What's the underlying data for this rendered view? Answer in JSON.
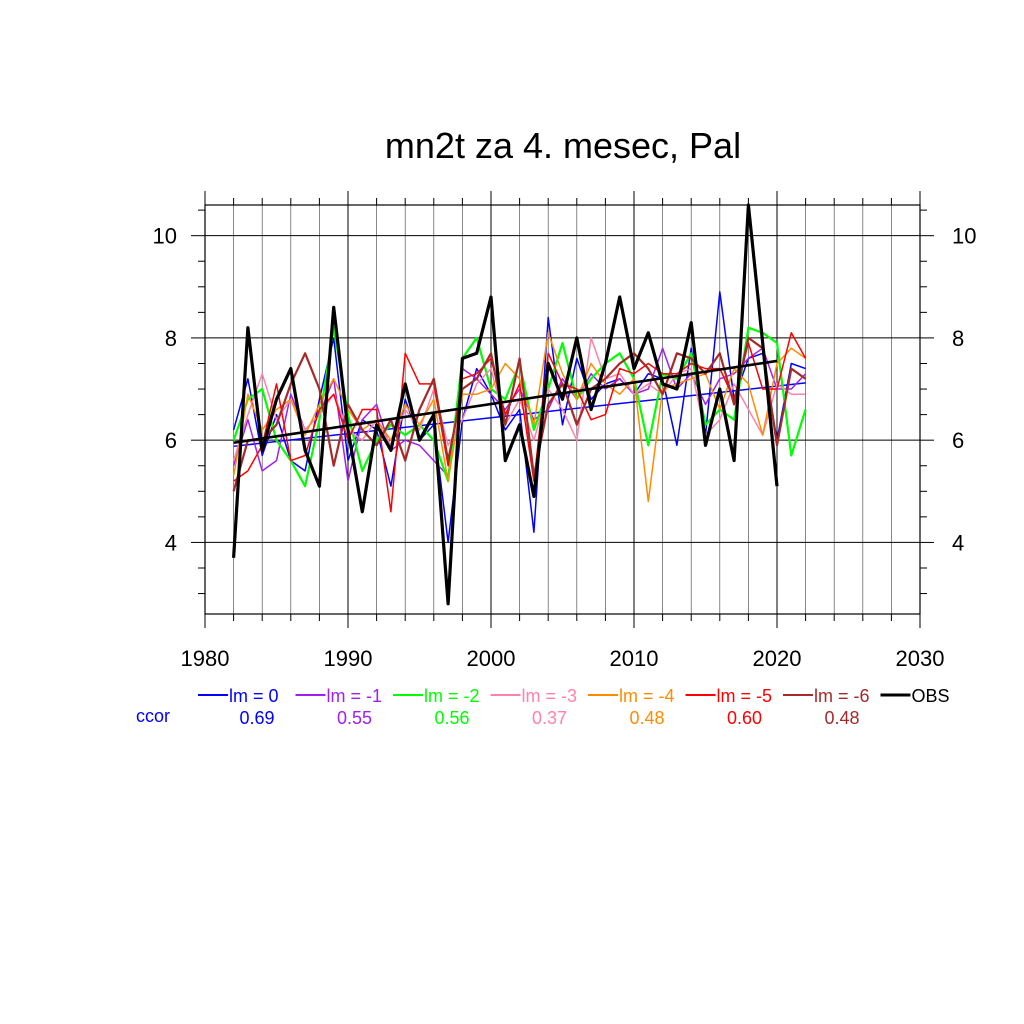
{
  "chart_data": {
    "type": "line",
    "title": "mn2t za 4. mesec, Pal",
    "xlabel": "",
    "ylabel": "",
    "xlim": [
      1980,
      2030
    ],
    "ylim": [
      2.6,
      10.6
    ],
    "x_ticks": [
      1980,
      1990,
      2000,
      2010,
      2020,
      2030
    ],
    "y_ticks": [
      4,
      6,
      8,
      10
    ],
    "grid": true,
    "ccor_label": "ccor",
    "series": [
      {
        "name": "lm = 0",
        "color": "#0000ff",
        "ccor": "0.69",
        "width": 1.5,
        "x": [
          1982,
          1983,
          1984,
          1985,
          1986,
          1987,
          1988,
          1989,
          1990,
          1991,
          1992,
          1993,
          1994,
          1995,
          1996,
          1997,
          1998,
          1999,
          2000,
          2001,
          2002,
          2003,
          2004,
          2005,
          2006,
          2007,
          2008,
          2009,
          2010,
          2011,
          2012,
          2013,
          2014,
          2015,
          2016,
          2017,
          2018,
          2019,
          2020,
          2021,
          2022
        ],
        "y": [
          6.2,
          7.2,
          5.7,
          6.5,
          5.6,
          5.4,
          6.8,
          8.0,
          5.6,
          6.4,
          6.2,
          5.1,
          6.8,
          6.0,
          6.3,
          4.0,
          6.4,
          7.4,
          6.9,
          6.2,
          6.6,
          4.2,
          8.4,
          6.3,
          7.6,
          6.8,
          7.1,
          7.2,
          6.9,
          7.3,
          7.2,
          5.9,
          7.8,
          6.1,
          8.9,
          6.8,
          7.6,
          7.7,
          6.0,
          7.5,
          7.4
        ],
        "trend": {
          "x": [
            1982,
            2022
          ],
          "y": [
            5.88,
            7.12
          ]
        }
      },
      {
        "name": "lm = -1",
        "color": "#a020f0",
        "ccor": "0.55",
        "width": 1.5,
        "x": [
          1982,
          1983,
          1984,
          1985,
          1986,
          1987,
          1988,
          1989,
          1990,
          1991,
          1992,
          1993,
          1994,
          1995,
          1996,
          1997,
          1998,
          1999,
          2000,
          2001,
          2002,
          2003,
          2004,
          2005,
          2006,
          2007,
          2008,
          2009,
          2010,
          2011,
          2012,
          2013,
          2014,
          2015,
          2016,
          2017,
          2018,
          2019,
          2020,
          2021,
          2022
        ],
        "y": [
          5.5,
          6.4,
          5.4,
          5.6,
          6.9,
          6.2,
          6.5,
          7.2,
          5.2,
          6.4,
          6.7,
          5.8,
          6.0,
          5.9,
          5.6,
          5.3,
          7.4,
          7.2,
          6.9,
          6.6,
          7.0,
          6.4,
          6.6,
          7.2,
          6.8,
          7.3,
          7.0,
          7.2,
          6.9,
          7.0,
          7.8,
          7.0,
          7.3,
          6.7,
          7.2,
          7.3,
          7.6,
          7.8,
          7.0,
          7.0,
          7.3
        ]
      },
      {
        "name": "lm = -2",
        "color": "#00ff00",
        "ccor": "0.56",
        "width": 2.2,
        "x": [
          1982,
          1983,
          1984,
          1985,
          1986,
          1987,
          1988,
          1989,
          1990,
          1991,
          1992,
          1993,
          1994,
          1995,
          1996,
          1997,
          1998,
          1999,
          2000,
          2001,
          2002,
          2003,
          2004,
          2005,
          2006,
          2007,
          2008,
          2009,
          2010,
          2011,
          2012,
          2013,
          2014,
          2015,
          2016,
          2017,
          2018,
          2019,
          2020,
          2021,
          2022
        ],
        "y": [
          6.0,
          6.8,
          7.0,
          6.0,
          5.6,
          5.1,
          6.4,
          8.2,
          6.5,
          5.4,
          6.0,
          6.3,
          6.1,
          6.3,
          6.0,
          5.2,
          7.6,
          8.0,
          7.0,
          6.8,
          7.5,
          6.2,
          7.0,
          7.9,
          6.8,
          7.2,
          7.5,
          7.7,
          7.2,
          5.9,
          7.3,
          7.2,
          7.7,
          6.3,
          6.6,
          6.4,
          8.2,
          8.1,
          7.9,
          5.7,
          6.6
        ]
      },
      {
        "name": "lm = -3",
        "color": "#ff82ab",
        "ccor": "0.37",
        "width": 1.5,
        "x": [
          1982,
          1983,
          1984,
          1985,
          1986,
          1987,
          1988,
          1989,
          1990,
          1991,
          1992,
          1993,
          1994,
          1995,
          1996,
          1997,
          1998,
          1999,
          2000,
          2001,
          2002,
          2003,
          2004,
          2005,
          2006,
          2007,
          2008,
          2009,
          2010,
          2011,
          2012,
          2013,
          2014,
          2015,
          2016,
          2017,
          2018,
          2019,
          2020,
          2021,
          2022
        ],
        "y": [
          5.6,
          6.5,
          7.3,
          6.4,
          6.8,
          6.2,
          6.5,
          6.9,
          6.2,
          6.0,
          6.4,
          5.9,
          6.6,
          6.2,
          7.0,
          5.9,
          6.4,
          7.1,
          7.4,
          6.3,
          6.8,
          6.0,
          7.0,
          6.6,
          6.0,
          8.0,
          7.2,
          7.3,
          6.9,
          7.1,
          6.9,
          7.3,
          7.4,
          6.1,
          6.4,
          7.1,
          6.6,
          6.1,
          7.1,
          6.9,
          6.9
        ]
      },
      {
        "name": "lm = -4",
        "color": "#ff8c00",
        "ccor": "0.48",
        "width": 1.5,
        "x": [
          1982,
          1983,
          1984,
          1985,
          1986,
          1987,
          1988,
          1989,
          1990,
          1991,
          1992,
          1993,
          1994,
          1995,
          1996,
          1997,
          1998,
          1999,
          2000,
          2001,
          2002,
          2003,
          2004,
          2005,
          2006,
          2007,
          2008,
          2009,
          2010,
          2011,
          2012,
          2013,
          2014,
          2015,
          2016,
          2017,
          2018,
          2019,
          2020,
          2021,
          2022
        ],
        "y": [
          5.3,
          6.9,
          6.2,
          6.6,
          6.8,
          6.1,
          6.7,
          7.2,
          6.6,
          6.2,
          6.4,
          6.0,
          6.7,
          6.3,
          6.8,
          5.2,
          6.9,
          6.9,
          7.0,
          7.5,
          7.2,
          6.3,
          8.1,
          7.3,
          6.8,
          7.5,
          7.1,
          6.9,
          7.2,
          4.8,
          7.0,
          7.1,
          7.2,
          7.3,
          6.6,
          7.4,
          7.1,
          6.1,
          7.5,
          7.8,
          7.6
        ]
      },
      {
        "name": "lm = -5",
        "color": "#ff0000",
        "ccor": "0.60",
        "width": 1.5,
        "x": [
          1982,
          1983,
          1984,
          1985,
          1986,
          1987,
          1988,
          1989,
          1990,
          1991,
          1992,
          1993,
          1994,
          1995,
          1996,
          1997,
          1998,
          1999,
          2000,
          2001,
          2002,
          2003,
          2004,
          2005,
          2006,
          2007,
          2008,
          2009,
          2010,
          2011,
          2012,
          2013,
          2014,
          2015,
          2016,
          2017,
          2018,
          2019,
          2020,
          2021,
          2022
        ],
        "y": [
          5.2,
          5.4,
          5.9,
          7.1,
          5.6,
          5.7,
          6.6,
          6.9,
          6.0,
          6.6,
          6.6,
          4.6,
          7.7,
          7.1,
          7.1,
          5.5,
          7.2,
          7.3,
          7.6,
          6.5,
          7.1,
          5.2,
          7.7,
          7.1,
          7.0,
          6.4,
          6.5,
          7.4,
          7.3,
          7.5,
          7.3,
          7.3,
          7.5,
          7.4,
          7.4,
          6.8,
          7.9,
          7.0,
          7.0,
          8.1,
          7.6
        ]
      },
      {
        "name": "lm = -6",
        "color": "#a52a2a",
        "ccor": "0.48",
        "width": 2.2,
        "x": [
          1982,
          1983,
          1984,
          1985,
          1986,
          1987,
          1988,
          1989,
          1990,
          1991,
          1992,
          1993,
          1994,
          1995,
          1996,
          1997,
          1998,
          1999,
          2000,
          2001,
          2002,
          2003,
          2004,
          2005,
          2006,
          2007,
          2008,
          2009,
          2010,
          2011,
          2012,
          2013,
          2014,
          2015,
          2016,
          2017,
          2018,
          2019,
          2020,
          2021,
          2022
        ],
        "y": [
          5.0,
          6.0,
          6.0,
          6.3,
          7.1,
          7.7,
          7.0,
          5.5,
          6.7,
          6.2,
          5.9,
          6.4,
          5.6,
          6.6,
          7.2,
          5.6,
          7.0,
          7.2,
          7.7,
          6.3,
          7.6,
          5.3,
          6.7,
          7.1,
          6.3,
          7.0,
          7.2,
          7.5,
          7.7,
          7.4,
          6.9,
          7.7,
          7.6,
          7.3,
          7.7,
          6.7,
          8.0,
          7.8,
          5.9,
          7.4,
          7.2
        ]
      },
      {
        "name": "OBS",
        "color": "#000000",
        "ccor": "",
        "width": 3.2,
        "x": [
          1982,
          1983,
          1984,
          1985,
          1986,
          1987,
          1988,
          1989,
          1990,
          1991,
          1992,
          1993,
          1994,
          1995,
          1996,
          1997,
          1998,
          1999,
          2000,
          2001,
          2002,
          2003,
          2004,
          2005,
          2006,
          2007,
          2008,
          2009,
          2010,
          2011,
          2012,
          2013,
          2014,
          2015,
          2016,
          2017,
          2018,
          2019,
          2020
        ],
        "y": [
          3.7,
          8.2,
          5.8,
          6.8,
          7.4,
          5.8,
          5.1,
          8.6,
          6.2,
          4.6,
          6.3,
          5.8,
          7.1,
          6.0,
          6.5,
          2.8,
          7.6,
          7.7,
          8.8,
          5.6,
          6.3,
          4.9,
          7.5,
          6.8,
          8.0,
          6.6,
          7.5,
          8.8,
          7.4,
          8.1,
          7.1,
          7.0,
          8.3,
          5.9,
          7.0,
          5.6,
          10.6,
          7.9,
          5.1
        ],
        "trend": {
          "x": [
            1982,
            2020
          ],
          "y": [
            5.95,
            7.55
          ]
        }
      }
    ]
  }
}
